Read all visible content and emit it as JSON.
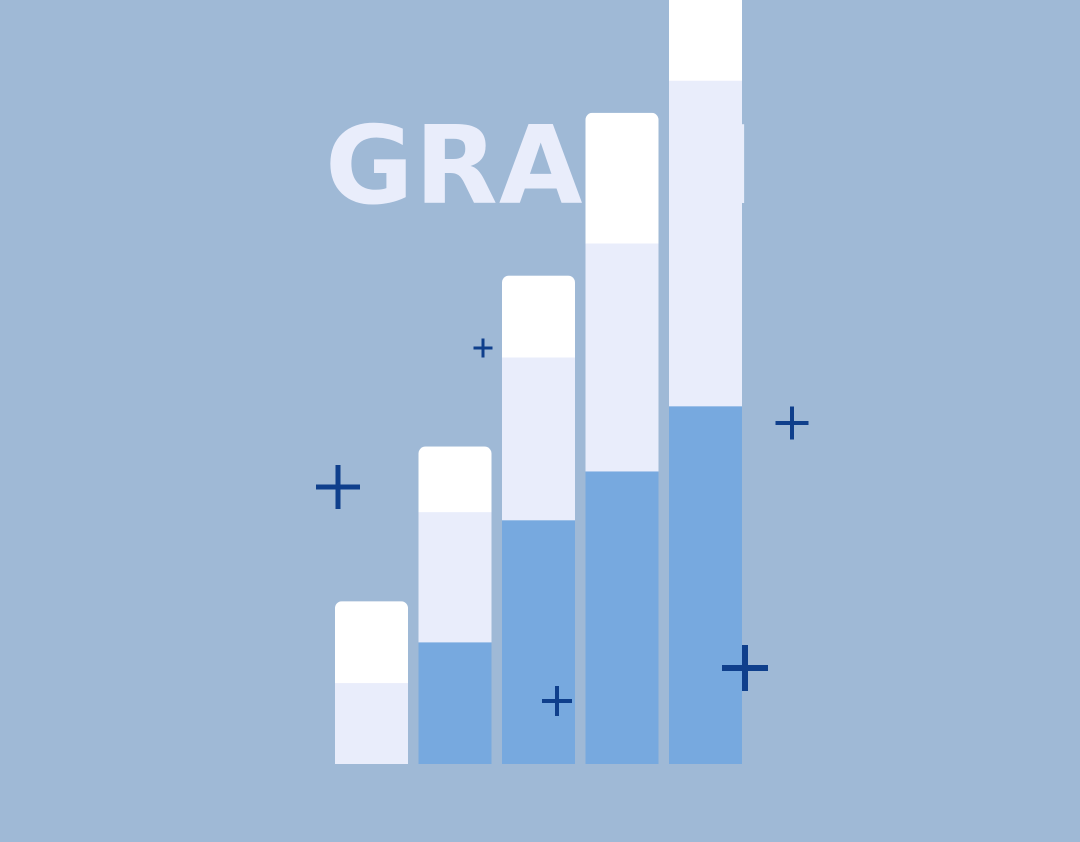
{
  "title": "GRAPH",
  "colors": {
    "background": "#9fb9d6",
    "title": "#e9edfb",
    "cross": "#0f3f8c"
  },
  "chart_data": {
    "type": "bar",
    "stacked": true,
    "categories": [
      "",
      "",
      "",
      "",
      ""
    ],
    "series": [
      {
        "color": "#77a9df",
        "values": [
          0,
          3,
          6,
          7.2,
          8.8
        ]
      },
      {
        "color": "#e9edfb",
        "values": [
          2,
          3.2,
          4,
          5.6,
          8
        ]
      },
      {
        "color": "#ffffff",
        "values": [
          2,
          1.6,
          2,
          3.2,
          3.2
        ]
      }
    ],
    "ylim": [
      0,
      20
    ],
    "grid": false,
    "legend": "none"
  },
  "decorations": [
    {
      "name": "cross-icon"
    },
    {
      "name": "cross-icon"
    },
    {
      "name": "cross-icon"
    },
    {
      "name": "cross-icon"
    },
    {
      "name": "cross-icon"
    }
  ]
}
